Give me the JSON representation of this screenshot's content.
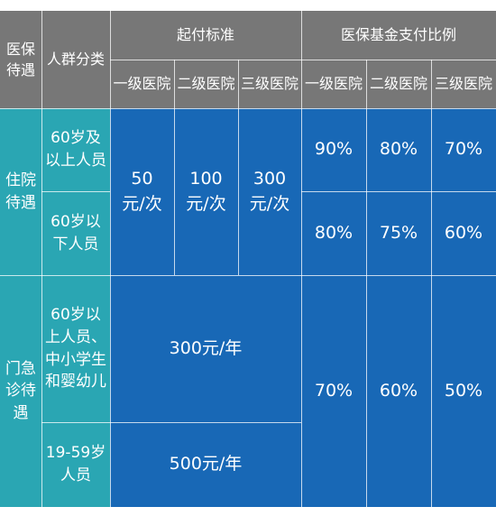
{
  "table": {
    "header": {
      "category": "医保\n待遇",
      "group": "人群分类",
      "threshold": "起付标准",
      "ratio": "医保基金支付比例",
      "levels": [
        "一级医院",
        "二级医院",
        "三级医院"
      ]
    },
    "inpatient": {
      "label": "住院\n待遇",
      "groups": [
        "60岁及\n以上人员",
        "60岁以\n下人员"
      ],
      "thresholds": [
        "50\n元/次",
        "100\n元/次",
        "300\n元/次"
      ],
      "ratios": [
        [
          "90%",
          "80%",
          "70%"
        ],
        [
          "80%",
          "75%",
          "60%"
        ]
      ]
    },
    "outpatient": {
      "label": "门急\n诊待\n遇",
      "groups": [
        "60岁以\n上人员、\n中小学生\n和婴幼儿",
        "19-59岁\n人员"
      ],
      "thresholds": [
        "300元/年",
        "500元/年"
      ],
      "ratios": [
        "70%",
        "60%",
        "50%"
      ]
    },
    "colors": {
      "header": "#777777",
      "category": "#2aa6b3",
      "body": "#1868b6",
      "text": "#ffffff"
    }
  }
}
